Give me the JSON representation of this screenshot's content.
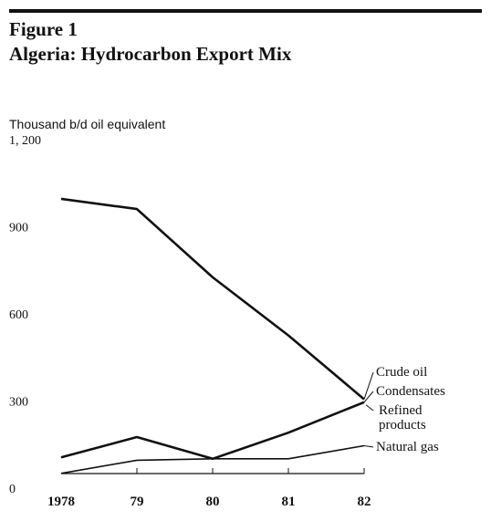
{
  "figure": {
    "label": "Figure 1",
    "title": "Algeria: Hydrocarbon Export Mix"
  },
  "chart_data": {
    "type": "line",
    "title": "Algeria: Hydrocarbon Export Mix",
    "ylabel": "Thousand b/d oil equivalent",
    "xlabel": "",
    "x": [
      "1978",
      "79",
      "80",
      "81",
      "82"
    ],
    "ylim": [
      0,
      1200
    ],
    "yticks": [
      "0",
      "300",
      "600",
      "900",
      "1, 200"
    ],
    "grid": false,
    "series": [
      {
        "name": "Crude oil",
        "values": [
          1040,
          1005,
          770,
          570,
          350
        ],
        "stroke": "#111111",
        "width": 2.6
      },
      {
        "name": "Condensates",
        "values": [
          150,
          220,
          145,
          235,
          340
        ],
        "stroke": "#111111",
        "width": 2.6
      },
      {
        "name": "Refined products",
        "values": [
          150,
          220,
          145,
          235,
          340
        ],
        "stroke": "#111111",
        "width": 1.0
      },
      {
        "name": "Natural gas",
        "values": [
          95,
          140,
          145,
          145,
          190
        ],
        "stroke": "#111111",
        "width": 1.6
      }
    ],
    "labels": {
      "crude": "Crude oil",
      "condensates": "Condensates",
      "refined_line1": "Refined",
      "refined_line2": "products",
      "gas": "Natural gas"
    }
  }
}
